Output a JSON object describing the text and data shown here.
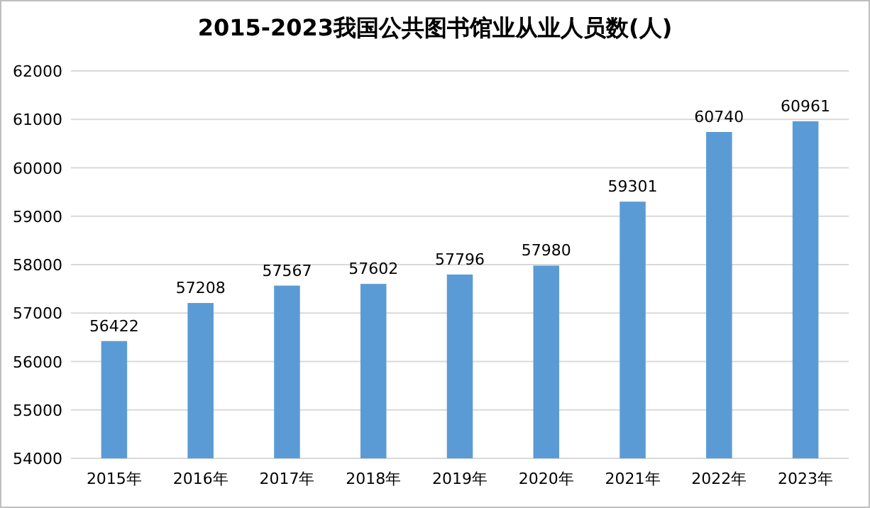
{
  "chart_data": {
    "type": "bar",
    "title": "2015-2023我国公共图书馆业从业人员数(人)",
    "categories": [
      "2015年",
      "2016年",
      "2017年",
      "2018年",
      "2019年",
      "2020年",
      "2021年",
      "2022年",
      "2023年"
    ],
    "values": [
      56422,
      57208,
      57567,
      57602,
      57796,
      57980,
      59301,
      60740,
      60961
    ],
    "color": "#5b9bd5",
    "ylim": [
      54000,
      62000
    ],
    "yticks": [
      54000,
      55000,
      56000,
      57000,
      58000,
      59000,
      60000,
      61000,
      62000
    ],
    "grid": "y",
    "data_labels": true
  }
}
